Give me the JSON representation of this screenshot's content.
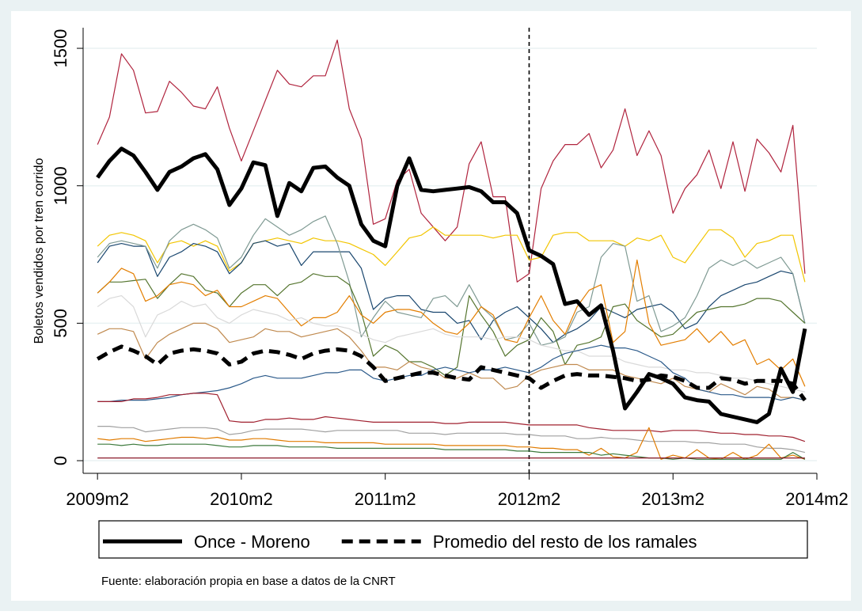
{
  "chart_data": {
    "type": "line",
    "y_label": "Boletos vendidos por tren corrido",
    "note": "Fuente: elaboración propia en base a datos de la CNRT",
    "x": [
      589,
      590,
      591,
      592,
      593,
      594,
      595,
      596,
      597,
      598,
      599,
      600,
      601,
      602,
      603,
      604,
      605,
      606,
      607,
      608,
      609,
      610,
      611,
      612,
      613,
      614,
      615,
      616,
      617,
      618,
      619,
      620,
      621,
      622,
      623,
      624,
      625,
      626,
      627,
      628,
      629,
      630,
      631,
      632,
      633,
      634,
      635,
      636,
      637,
      638,
      639,
      640,
      641,
      642,
      643,
      644,
      645,
      646,
      647,
      648
    ],
    "xlim": [
      587.8,
      649
    ],
    "ylim": [
      -46,
      1575
    ],
    "xticks": [
      {
        "value": 589,
        "label": "2009m2"
      },
      {
        "value": 601,
        "label": "2010m2"
      },
      {
        "value": 613,
        "label": "2011m2"
      },
      {
        "value": 625,
        "label": "2012m2"
      },
      {
        "value": 637,
        "label": "2013m2"
      },
      {
        "value": 649,
        "label": "2014m2"
      }
    ],
    "yticks": [
      0,
      500,
      1000,
      1500
    ],
    "grid": true,
    "xline": 625,
    "series": [
      {
        "name": "Once - Moreno",
        "color": "#000000",
        "values": [
          1030,
          1090,
          1135,
          1110,
          1050,
          985,
          1050,
          1070,
          1100,
          1115,
          1060,
          930,
          990,
          1085,
          1075,
          890,
          1010,
          980,
          1065,
          1070,
          1030,
          1000,
          860,
          800,
          780,
          1000,
          1100,
          985,
          980,
          985,
          990,
          995,
          980,
          940,
          940,
          900,
          765,
          745,
          715,
          570,
          580,
          530,
          565,
          400,
          190,
          250,
          315,
          300,
          280,
          230,
          220,
          215,
          170,
          160,
          150,
          140,
          170,
          335,
          250,
          480
        ]
      },
      {
        "name": "Promedio del resto de los ramales",
        "color": "#000000",
        "dashed": true,
        "values": [
          370,
          395,
          415,
          400,
          380,
          350,
          390,
          400,
          405,
          400,
          390,
          350,
          360,
          390,
          400,
          395,
          385,
          370,
          390,
          400,
          405,
          400,
          380,
          340,
          290,
          300,
          310,
          320,
          320,
          310,
          300,
          295,
          340,
          330,
          320,
          310,
          300,
          265,
          290,
          310,
          315,
          310,
          310,
          305,
          300,
          290,
          295,
          310,
          305,
          290,
          265,
          265,
          300,
          295,
          280,
          290,
          290,
          290,
          280,
          220
        ]
      },
      {
        "color": "#b0243e",
        "values": [
          1150,
          1250,
          1480,
          1420,
          1265,
          1270,
          1380,
          1340,
          1290,
          1280,
          1360,
          1210,
          1090,
          1200,
          1310,
          1420,
          1370,
          1360,
          1400,
          1400,
          1530,
          1280,
          1170,
          860,
          880,
          1020,
          1060,
          900,
          850,
          800,
          850,
          1080,
          1160,
          960,
          960,
          650,
          680,
          990,
          1090,
          1150,
          1150,
          1190,
          1065,
          1130,
          1280,
          1110,
          1200,
          1110,
          900,
          990,
          1040,
          1130,
          990,
          1160,
          980,
          1170,
          1120,
          1050,
          1220,
          680
        ]
      },
      {
        "color": "#f2c500",
        "values": [
          780,
          820,
          830,
          820,
          800,
          720,
          790,
          800,
          780,
          800,
          780,
          690,
          720,
          790,
          800,
          810,
          800,
          790,
          810,
          800,
          800,
          790,
          770,
          750,
          710,
          760,
          810,
          820,
          850,
          820,
          820,
          820,
          820,
          810,
          820,
          820,
          730,
          740,
          820,
          830,
          830,
          800,
          800,
          800,
          780,
          810,
          800,
          820,
          740,
          720,
          780,
          840,
          840,
          810,
          740,
          790,
          800,
          820,
          820,
          650
        ]
      },
      {
        "color": "#1a476f",
        "values": [
          720,
          780,
          790,
          780,
          780,
          670,
          740,
          760,
          790,
          780,
          760,
          680,
          720,
          790,
          800,
          780,
          790,
          710,
          760,
          760,
          760,
          760,
          700,
          550,
          590,
          600,
          600,
          550,
          540,
          540,
          500,
          510,
          440,
          510,
          540,
          560,
          520,
          480,
          430,
          460,
          480,
          510,
          560,
          540,
          520,
          550,
          560,
          570,
          540,
          480,
          500,
          560,
          600,
          620,
          640,
          650,
          670,
          690,
          680,
          500
        ]
      },
      {
        "color": "#7f9a93",
        "values": [
          740,
          790,
          800,
          790,
          780,
          700,
          800,
          840,
          860,
          840,
          810,
          700,
          740,
          820,
          880,
          850,
          820,
          840,
          870,
          890,
          790,
          650,
          450,
          520,
          580,
          540,
          530,
          520,
          590,
          600,
          560,
          640,
          560,
          520,
          440,
          450,
          500,
          420,
          430,
          450,
          540,
          560,
          740,
          790,
          780,
          580,
          600,
          470,
          490,
          520,
          600,
          700,
          730,
          710,
          730,
          700,
          720,
          740,
          680,
          500
        ]
      },
      {
        "color": "#55752f",
        "values": [
          610,
          650,
          650,
          655,
          660,
          590,
          640,
          680,
          670,
          620,
          610,
          560,
          610,
          640,
          640,
          600,
          640,
          650,
          680,
          670,
          670,
          640,
          540,
          380,
          420,
          400,
          360,
          360,
          340,
          310,
          340,
          600,
          530,
          470,
          380,
          420,
          440,
          520,
          470,
          350,
          420,
          430,
          450,
          560,
          570,
          510,
          480,
          450,
          460,
          500,
          540,
          550,
          560,
          560,
          570,
          590,
          590,
          580,
          540,
          500
        ]
      },
      {
        "color": "#e37e00",
        "values": [
          610,
          650,
          700,
          680,
          580,
          600,
          640,
          650,
          640,
          600,
          620,
          560,
          560,
          580,
          600,
          590,
          540,
          490,
          520,
          520,
          540,
          600,
          530,
          500,
          540,
          550,
          550,
          540,
          500,
          470,
          460,
          500,
          560,
          530,
          440,
          430,
          520,
          600,
          510,
          460,
          560,
          620,
          640,
          430,
          470,
          730,
          500,
          420,
          430,
          440,
          480,
          430,
          470,
          420,
          440,
          350,
          370,
          330,
          370,
          270
        ]
      },
      {
        "color": "#d9d9d9",
        "values": [
          560,
          590,
          600,
          560,
          450,
          530,
          550,
          580,
          560,
          570,
          520,
          500,
          530,
          550,
          540,
          530,
          510,
          520,
          500,
          490,
          490,
          480,
          460,
          440,
          430,
          450,
          460,
          470,
          480,
          460,
          450,
          450,
          450,
          440,
          450,
          450,
          440,
          420,
          410,
          400,
          400,
          380,
          380,
          380,
          360,
          350,
          340,
          340,
          330,
          330,
          320,
          320,
          310,
          300,
          300,
          290,
          280,
          270,
          260,
          250
        ]
      },
      {
        "color": "#c08a4f",
        "values": [
          460,
          480,
          480,
          470,
          370,
          430,
          460,
          480,
          500,
          500,
          480,
          430,
          440,
          450,
          480,
          470,
          470,
          450,
          460,
          470,
          480,
          450,
          400,
          340,
          340,
          330,
          360,
          340,
          330,
          300,
          300,
          320,
          300,
          300,
          260,
          270,
          310,
          330,
          340,
          350,
          350,
          330,
          330,
          330,
          310,
          300,
          290,
          280,
          300,
          270,
          260,
          250,
          280,
          260,
          240,
          270,
          260,
          230,
          230,
          220
        ]
      },
      {
        "color": "#2b5a8a",
        "values": [
          215,
          215,
          220,
          220,
          220,
          225,
          230,
          240,
          245,
          250,
          255,
          265,
          280,
          300,
          310,
          300,
          300,
          300,
          310,
          320,
          320,
          330,
          330,
          300,
          290,
          300,
          310,
          310,
          330,
          340,
          330,
          320,
          330,
          330,
          340,
          330,
          320,
          340,
          370,
          390,
          400,
          410,
          420,
          410,
          410,
          400,
          380,
          360,
          320,
          300,
          260,
          250,
          240,
          240,
          230,
          230,
          230,
          220,
          230,
          220
        ]
      },
      {
        "color": "#a0202f",
        "values": [
          215,
          215,
          215,
          225,
          225,
          230,
          240,
          240,
          245,
          245,
          240,
          145,
          140,
          140,
          150,
          150,
          155,
          150,
          150,
          160,
          155,
          150,
          145,
          140,
          140,
          140,
          140,
          140,
          140,
          135,
          135,
          140,
          140,
          140,
          140,
          135,
          130,
          130,
          130,
          130,
          130,
          120,
          115,
          110,
          110,
          110,
          110,
          105,
          110,
          110,
          110,
          105,
          100,
          100,
          95,
          95,
          90,
          90,
          85,
          70
        ]
      },
      {
        "color": "#a0a0a0",
        "values": [
          125,
          125,
          120,
          120,
          105,
          110,
          115,
          120,
          120,
          120,
          115,
          95,
          100,
          110,
          115,
          115,
          115,
          115,
          110,
          105,
          110,
          110,
          110,
          110,
          110,
          110,
          100,
          100,
          100,
          95,
          100,
          100,
          100,
          100,
          100,
          95,
          95,
          90,
          90,
          90,
          80,
          80,
          85,
          80,
          80,
          75,
          70,
          70,
          70,
          70,
          65,
          65,
          60,
          60,
          60,
          50,
          45,
          45,
          40,
          30
        ]
      },
      {
        "color": "#e07b00",
        "values": [
          80,
          75,
          80,
          80,
          70,
          75,
          80,
          85,
          85,
          80,
          85,
          75,
          75,
          80,
          80,
          75,
          70,
          70,
          70,
          65,
          65,
          65,
          65,
          65,
          60,
          60,
          60,
          60,
          60,
          55,
          55,
          55,
          55,
          55,
          55,
          50,
          50,
          45,
          45,
          40,
          40,
          20,
          45,
          15,
          10,
          30,
          120,
          5,
          20,
          10,
          40,
          10,
          5,
          30,
          5,
          20,
          60,
          10,
          20,
          5
        ]
      },
      {
        "color": "#3d7a3d",
        "values": [
          60,
          60,
          55,
          60,
          55,
          55,
          60,
          60,
          60,
          60,
          55,
          50,
          50,
          55,
          55,
          55,
          50,
          50,
          50,
          50,
          45,
          45,
          45,
          45,
          45,
          45,
          45,
          45,
          45,
          40,
          40,
          40,
          40,
          40,
          40,
          35,
          35,
          30,
          30,
          30,
          30,
          30,
          20,
          25,
          20,
          15,
          10,
          10,
          5,
          10,
          5,
          5,
          5,
          5,
          5,
          5,
          5,
          5,
          30,
          5
        ]
      },
      {
        "color": "#8a1a2a",
        "values": [
          10,
          10,
          10,
          10,
          10,
          10,
          10,
          10,
          10,
          10,
          10,
          10,
          10,
          10,
          10,
          10,
          10,
          10,
          10,
          10,
          10,
          10,
          10,
          10,
          10,
          10,
          10,
          10,
          10,
          10,
          10,
          10,
          10,
          10,
          10,
          10,
          10,
          10,
          10,
          10,
          10,
          10,
          10,
          10,
          10,
          10,
          10,
          10,
          10,
          10,
          10,
          10,
          10,
          10,
          10,
          10,
          10,
          10,
          10,
          10
        ]
      }
    ]
  }
}
